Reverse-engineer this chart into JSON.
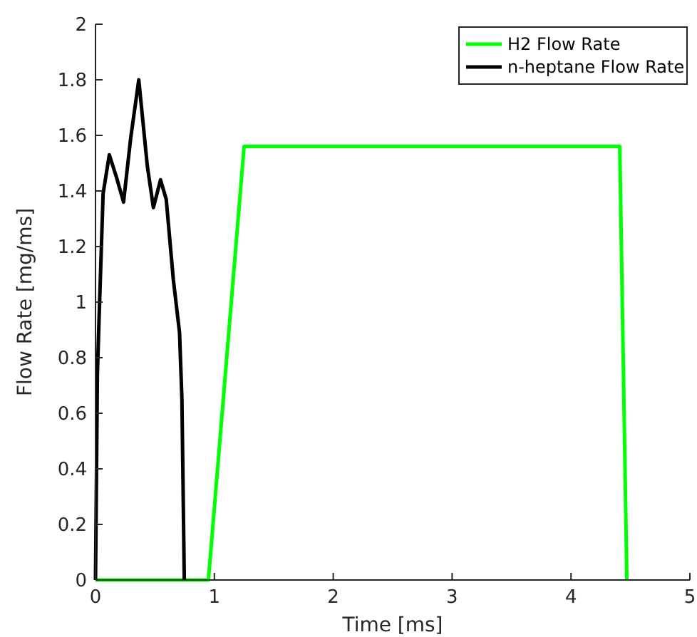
{
  "chart_data": {
    "type": "line",
    "xlabel": "Time [ms]",
    "ylabel": "Flow Rate [mg/ms]",
    "xlim": [
      0,
      5
    ],
    "ylim": [
      0,
      2
    ],
    "xticks": [
      0,
      1,
      2,
      3,
      4,
      5
    ],
    "yticks": [
      0,
      0.2,
      0.4,
      0.6,
      0.8,
      1,
      1.2,
      1.4,
      1.6,
      1.8,
      2
    ],
    "legend": "top right",
    "grid": false,
    "series": [
      {
        "name": "H2 Flow Rate",
        "color": "#00ff00",
        "x": [
          0,
          0.95,
          1.25,
          4.41,
          4.47
        ],
        "values": [
          0,
          0,
          1.56,
          1.56,
          0
        ]
      },
      {
        "name": "n-heptane Flow Rate",
        "color": "#000000",
        "x": [
          0,
          0.016,
          0.03,
          0.064,
          0.116,
          0.176,
          0.236,
          0.296,
          0.364,
          0.436,
          0.487,
          0.547,
          0.595,
          0.655,
          0.707,
          0.727,
          0.747
        ],
        "values": [
          0,
          0.74,
          0.94,
          1.39,
          1.53,
          1.45,
          1.36,
          1.59,
          1.8,
          1.49,
          1.34,
          1.44,
          1.37,
          1.08,
          0.89,
          0.65,
          0
        ]
      }
    ]
  }
}
